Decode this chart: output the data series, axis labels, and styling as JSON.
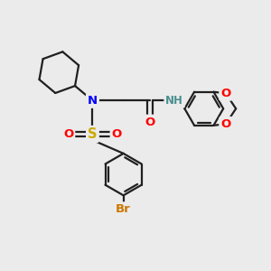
{
  "background_color": "#EBEBEB",
  "atom_colors": {
    "N": "#0000FF",
    "O": "#FF0000",
    "S": "#CCAA00",
    "Br": "#CC7700",
    "C": "#000000",
    "H": "#4A9090"
  },
  "bond_color": "#202020",
  "bond_width": 1.6,
  "fig_width": 3.0,
  "fig_height": 3.0,
  "dpi": 100
}
